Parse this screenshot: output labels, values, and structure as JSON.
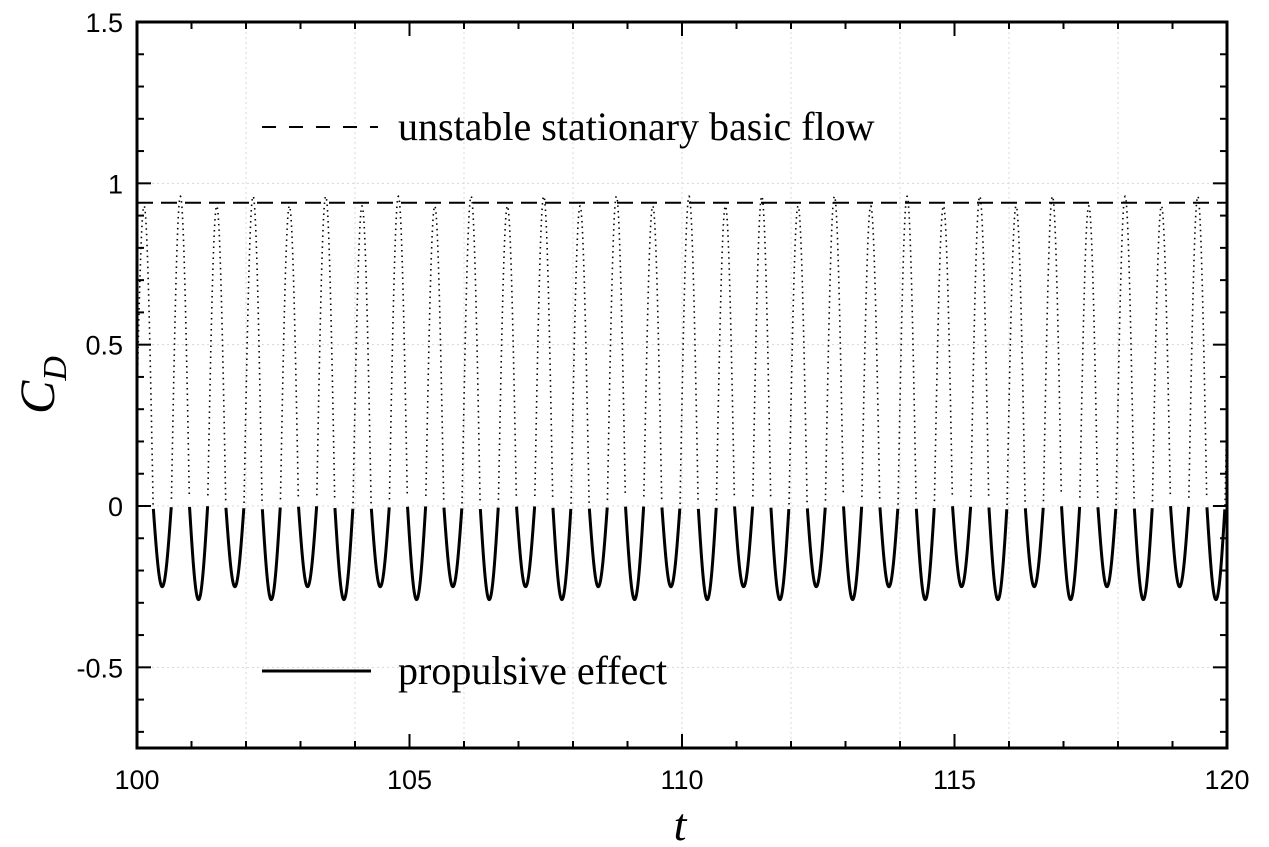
{
  "chart_data": {
    "type": "line",
    "xlabel": "t",
    "ylabel": "C",
    "ylabel_subscript": "D",
    "xlim": [
      100,
      120
    ],
    "ylim": [
      -0.75,
      1.5
    ],
    "x_ticks": [
      "100",
      "105",
      "110",
      "115",
      "120"
    ],
    "y_ticks": [
      "1.5",
      "1",
      "0.5",
      "0",
      "-0.5"
    ],
    "x_tick_values": [
      100,
      105,
      110,
      115,
      120
    ],
    "y_tick_values": [
      1.5,
      1,
      0.5,
      0,
      -0.5
    ],
    "grid": true,
    "oscillation": {
      "period": 0.6667,
      "peaks_alternate": [
        0.93,
        0.96
      ],
      "troughs_alternate": [
        -0.25,
        -0.29
      ]
    },
    "series": [
      {
        "name": "unstable stationary basic flow",
        "style": "dashed",
        "color": "#000000",
        "x": [
          100,
          120
        ],
        "y": [
          0.94,
          0.94
        ]
      },
      {
        "name": "propulsive effect",
        "style": "solid",
        "color": "#000000",
        "description_range": "negative part of C_D oscillation",
        "y_range": [
          -0.29,
          0
        ]
      },
      {
        "style": "dotted",
        "color": "#000000",
        "description_range": "positive part of C_D oscillation",
        "y_range": [
          0,
          0.96
        ]
      }
    ],
    "legend": [
      {
        "label": "unstable stationary basic flow",
        "style": "dashed",
        "placement": "top-left"
      },
      {
        "label": "propulsive effect",
        "style": "solid",
        "placement": "bottom-left"
      }
    ]
  }
}
